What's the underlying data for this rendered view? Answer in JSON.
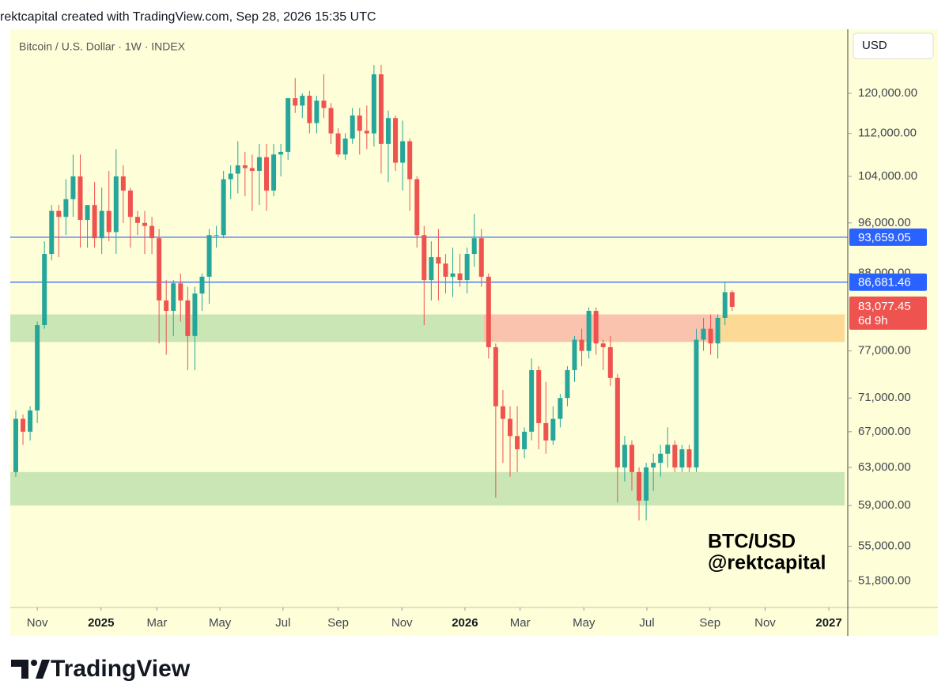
{
  "header": {
    "text": "rektcapital created with TradingView.com, Sep 28, 2026 15:35 UTC"
  },
  "footer": {
    "brand": "TradingView"
  },
  "chart_data": {
    "type": "candlestick",
    "title": "Bitcoin / U.S. Dollar · 1W · INDEX",
    "currency_button": "USD",
    "annotation": [
      "BTC/USD",
      "@rektcapital"
    ],
    "log_scale": true,
    "up_color": "#26a69a",
    "down_color": "#ef5350",
    "open": [
      62.5,
      68.5,
      67,
      69.5,
      80.5,
      91,
      98,
      97,
      100,
      104,
      96.5,
      99,
      93.5,
      98,
      94.5,
      104,
      101.5,
      97,
      96,
      95.5,
      93.5,
      84,
      82.5,
      86.5,
      84,
      79,
      85,
      87.5,
      94,
      94,
      103.5,
      104.5,
      106,
      105.5,
      105,
      107.5,
      101.5,
      108,
      108.5,
      119,
      117.5,
      119.5,
      114,
      118.5,
      117,
      112,
      108,
      111,
      115.5,
      112.5,
      112,
      124,
      110,
      115,
      106.5,
      110.5,
      103.5,
      94,
      87,
      90.5,
      89.5,
      87.5,
      88,
      87,
      91,
      93.5,
      87.5,
      77.5,
      70,
      68.5,
      66.5,
      65,
      67,
      74.5,
      68,
      66,
      68.5,
      71,
      74.5,
      78.5,
      77,
      82.5,
      78,
      77.5,
      73.5,
      63,
      65.5,
      62.5,
      59.5,
      63,
      63.5,
      64.5,
      65.5,
      63,
      65,
      63,
      78.5,
      80,
      78,
      81.5,
      85.2
    ],
    "high": [
      69.5,
      69,
      70,
      81,
      93,
      99,
      99,
      103.5,
      108,
      108,
      99,
      103,
      102,
      105,
      109,
      106,
      102,
      98,
      98,
      97,
      95,
      87,
      87,
      88,
      86,
      86,
      88,
      95,
      95.5,
      105,
      106,
      110.5,
      108.5,
      108,
      110,
      110,
      110,
      110,
      119,
      123.2,
      120,
      120.5,
      119.5,
      124,
      118,
      113,
      112,
      117,
      117,
      117.5,
      126,
      126,
      116.5,
      115.5,
      114.5,
      111,
      104,
      95.5,
      93,
      95,
      91,
      92,
      91,
      92,
      97.5,
      95,
      88,
      78,
      72,
      70,
      70,
      67.5,
      76,
      75,
      73,
      70,
      71.5,
      75,
      79,
      80,
      83,
      83,
      78.5,
      79,
      74,
      66.5,
      66,
      63,
      63.5,
      64.5,
      65.5,
      67.5,
      66,
      65.5,
      65.5,
      80,
      81.5,
      82,
      82,
      86.6,
      85.5
    ],
    "low": [
      62,
      65.5,
      66,
      68,
      80,
      90,
      90.5,
      94,
      97,
      92,
      92,
      92,
      91,
      93,
      91,
      96,
      92,
      94,
      91,
      91,
      78,
      76.5,
      79,
      81,
      74.5,
      74.5,
      82.5,
      83.5,
      92,
      93.5,
      100,
      101,
      100.5,
      98,
      99,
      98,
      100.5,
      104,
      107,
      116,
      115,
      112,
      112,
      115,
      110,
      107.5,
      107,
      110,
      108,
      109,
      109.5,
      104.5,
      103,
      105,
      101.5,
      98,
      92,
      80.5,
      84,
      84,
      85,
      84.5,
      86,
      85,
      89,
      86,
      76,
      59.8,
      63.5,
      62,
      62.5,
      64,
      66,
      65,
      64.5,
      65.5,
      67.5,
      70,
      73,
      75,
      76,
      76.5,
      74.5,
      72.5,
      59.3,
      61.5,
      60.5,
      57.5,
      57.5,
      60.5,
      62,
      63,
      62.5,
      62.5,
      62.5,
      62.5,
      77,
      76.5,
      76,
      80.5,
      82.5
    ],
    "close": [
      68.5,
      67,
      69.5,
      80.5,
      91,
      98,
      97,
      100,
      104,
      96.5,
      99,
      93.5,
      98,
      94.5,
      104,
      101.5,
      97,
      96,
      95.5,
      93.5,
      84,
      82.5,
      86.5,
      84,
      79,
      85,
      87.5,
      94,
      94,
      103.5,
      104.5,
      106,
      105.5,
      105,
      107.5,
      101.5,
      108,
      108.5,
      119,
      117.5,
      119.5,
      114,
      118.5,
      117,
      112,
      108,
      111,
      115.5,
      112.5,
      112,
      124,
      110,
      115,
      106.5,
      110.5,
      103.5,
      94,
      87,
      90.5,
      89.5,
      87.5,
      88,
      87,
      91,
      93.5,
      87.5,
      77.5,
      70,
      68.5,
      66.5,
      65,
      67,
      74.5,
      68,
      66,
      68.5,
      71,
      74.5,
      78.5,
      77,
      82.5,
      78,
      77.5,
      73.5,
      63,
      65.5,
      62.5,
      59.5,
      63,
      63.5,
      64.5,
      65.5,
      63,
      65,
      63,
      78.5,
      80,
      78,
      81.5,
      85.2,
      83.07745
    ],
    "value_unit": 1000,
    "xlim": [
      -0.77,
      115.7
    ],
    "ylim": [
      49500,
      134000
    ],
    "yticks": [
      {
        "value": 120000,
        "label": "120,000.00"
      },
      {
        "value": 112000,
        "label": "112,000.00"
      },
      {
        "value": 104000,
        "label": "104,000.00"
      },
      {
        "value": 96000,
        "label": "96,000.00"
      },
      {
        "value": 88000,
        "label": "88,000.00"
      },
      {
        "value": 77000,
        "label": "77,000.00"
      },
      {
        "value": 71000,
        "label": "71,000.00"
      },
      {
        "value": 67000,
        "label": "67,000.00"
      },
      {
        "value": 63000,
        "label": "63,000.00"
      },
      {
        "value": 59000,
        "label": "59,000.00"
      },
      {
        "value": 55000,
        "label": "55,000.00"
      },
      {
        "value": 51800,
        "label": "51,800.00"
      }
    ],
    "xticks": [
      {
        "value": 3.0,
        "label": "Nov"
      },
      {
        "value": 11.9,
        "label": "2025"
      },
      {
        "value": 19.7,
        "label": "Mar"
      },
      {
        "value": 28.5,
        "label": "May"
      },
      {
        "value": 37.3,
        "label": "Jul"
      },
      {
        "value": 45.0,
        "label": "Sep"
      },
      {
        "value": 53.9,
        "label": "Nov"
      },
      {
        "value": 62.7,
        "label": "2026"
      },
      {
        "value": 70.4,
        "label": "Mar"
      },
      {
        "value": 79.3,
        "label": "May"
      },
      {
        "value": 88.1,
        "label": "Jul"
      },
      {
        "value": 96.9,
        "label": "Sep"
      },
      {
        "value": 104.6,
        "label": "Nov"
      },
      {
        "value": 113.5,
        "label": "2027"
      }
    ],
    "zones": [
      {
        "x": [
          -0.77,
          65.3
        ],
        "y": [
          78200,
          82000
        ],
        "color": "#c9e6b4"
      },
      {
        "x": [
          65.3,
          98.2
        ],
        "y": [
          78200,
          82000
        ],
        "color": "#f9c3ae"
      },
      {
        "x": [
          98.2,
          115.7
        ],
        "y": [
          78200,
          82000
        ],
        "color": "#fcd995"
      },
      {
        "x": [
          -0.77,
          115.7
        ],
        "y": [
          59000,
          62500
        ],
        "color": "#c9e6b4"
      }
    ],
    "levels": [
      {
        "value": 93659.05,
        "label": "93,659.05",
        "color": "#2962ff"
      },
      {
        "value": 86681.46,
        "label": "86,681.46",
        "color": "#2962ff"
      }
    ],
    "last_price": {
      "value": 83077.45,
      "label": "83,077.45",
      "countdown": "6d 9h",
      "color": "#ef5350"
    }
  }
}
